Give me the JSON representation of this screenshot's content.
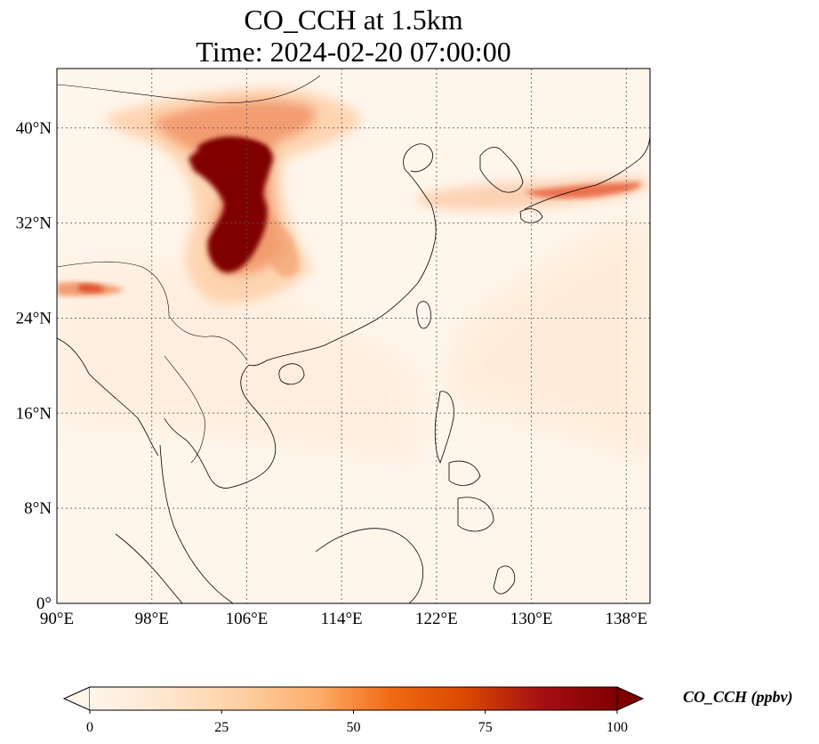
{
  "title": {
    "line1": "CO_CCH at 1.5km",
    "line2": "Time: 2024-02-20 07:00:00"
  },
  "map": {
    "extent": {
      "lon_min": 90,
      "lon_max": 140,
      "lat_min": 0,
      "lat_max": 45
    },
    "lon_ticks": [
      {
        "value": 90,
        "label": "90°E"
      },
      {
        "value": 98,
        "label": "98°E"
      },
      {
        "value": 106,
        "label": "106°E"
      },
      {
        "value": 114,
        "label": "114°E"
      },
      {
        "value": 122,
        "label": "122°E"
      },
      {
        "value": 130,
        "label": "130°E"
      },
      {
        "value": 138,
        "label": "138°E"
      }
    ],
    "lat_ticks": [
      {
        "value": 0,
        "label": "0°"
      },
      {
        "value": 8,
        "label": "8°N"
      },
      {
        "value": 16,
        "label": "16°N"
      },
      {
        "value": 24,
        "label": "24°N"
      },
      {
        "value": 32,
        "label": "32°N"
      },
      {
        "value": 40,
        "label": "40°N"
      }
    ],
    "gridlines": true,
    "background_color": "#fff5eb",
    "coastline_color": "#000000",
    "colormap": "OrRd"
  },
  "colorbar": {
    "label": "CO_CCH (ppbv)",
    "min": 0,
    "max": 100,
    "extend": "both",
    "ticks": [
      {
        "value": 0,
        "label": "0"
      },
      {
        "value": 25,
        "label": "25"
      },
      {
        "value": 50,
        "label": "50"
      },
      {
        "value": 75,
        "label": "75"
      },
      {
        "value": 100,
        "label": "100"
      }
    ],
    "colors": [
      "#fff5eb",
      "#fee6ce",
      "#fdd0a2",
      "#fdae6b",
      "#f16913",
      "#d94801",
      "#a50f15",
      "#7f0000"
    ]
  }
}
